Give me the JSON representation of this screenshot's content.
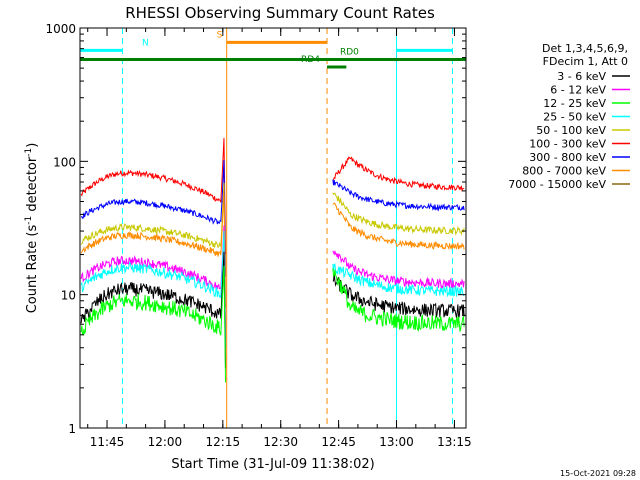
{
  "chart_data": {
    "type": "line",
    "title": "RHESSI Observing Summary Count Rates",
    "xlabel": "Start Time (31-Jul-09 11:38:02)",
    "ylabel_main": "Count Rate (s",
    "ylabel_sup1": "-1",
    "ylabel_mid": " detector",
    "ylabel_sup2": "-1",
    "ylabel_end": ")",
    "ylabel_full": "Count Rate (s-1 detector-1)",
    "yscale": "log",
    "xlim_min": [
      0,
      100
    ],
    "ylim": [
      1,
      1000
    ],
    "x_ticks": [
      {
        "m": 7,
        "label": "11:45"
      },
      {
        "m": 22,
        "label": "12:00"
      },
      {
        "m": 37,
        "label": "12:15"
      },
      {
        "m": 52,
        "label": "12:30"
      },
      {
        "m": 67,
        "label": "12:45"
      },
      {
        "m": 82,
        "label": "13:00"
      },
      {
        "m": 97,
        "label": "13:15"
      }
    ],
    "y_ticks": [
      {
        "v": 1,
        "label": "1"
      },
      {
        "v": 10,
        "label": "10"
      },
      {
        "v": 100,
        "label": "100"
      },
      {
        "v": 1000,
        "label": "1000"
      }
    ],
    "legend": {
      "placement": "right",
      "header": [
        "Det 1,3,4,5,6,9,",
        "FDecim 1, Att 0"
      ],
      "entries": [
        {
          "label": "3 - 6 keV",
          "color": "#000000"
        },
        {
          "label": "6 - 12 keV",
          "color": "#ff00ff"
        },
        {
          "label": "12 - 25 keV",
          "color": "#00ff00"
        },
        {
          "label": "25 - 50 keV",
          "color": "#00ffff"
        },
        {
          "label": "50 - 100 keV",
          "color": "#c8c800"
        },
        {
          "label": "100 - 300 keV",
          "color": "#ff0000"
        },
        {
          "label": "300 - 800 keV",
          "color": "#0000ff"
        },
        {
          "label": "800 - 7000 keV",
          "color": "#ff8c00"
        },
        {
          "label": "7000 - 15000 keV",
          "color": "#8b6914"
        }
      ]
    },
    "series": [
      {
        "color": "#ff0000",
        "pre_start": 55,
        "pre_peak": 82,
        "pre_end": 50,
        "post_start": 72,
        "post_jump": 105,
        "post_end": 63,
        "noise": 0.05
      },
      {
        "color": "#0000ff",
        "pre_start": 38,
        "pre_peak": 50,
        "pre_end": 34,
        "post_start": 70,
        "post_jump": 58,
        "post_end": 45,
        "noise": 0.05
      },
      {
        "color": "#c8c800",
        "pre_start": 25,
        "pre_peak": 32,
        "pre_end": 23,
        "post_start": 58,
        "post_jump": 40,
        "post_end": 30,
        "noise": 0.06
      },
      {
        "color": "#ff8c00",
        "pre_start": 21,
        "pre_peak": 28,
        "pre_end": 20,
        "post_start": 48,
        "post_jump": 32,
        "post_end": 23,
        "noise": 0.06
      },
      {
        "color": "#ff00ff",
        "pre_start": 13,
        "pre_peak": 18,
        "pre_end": 11,
        "post_start": 22,
        "post_jump": 16,
        "post_end": 12,
        "noise": 0.08
      },
      {
        "color": "#00ffff",
        "pre_start": 11,
        "pre_peak": 16,
        "pre_end": 10,
        "post_start": 16,
        "post_jump": 14,
        "post_end": 10.5,
        "noise": 0.09
      },
      {
        "color": "#000000",
        "pre_start": 6,
        "pre_peak": 11,
        "pre_end": 7,
        "post_start": 13,
        "post_jump": 10,
        "post_end": 7.5,
        "noise": 0.12
      },
      {
        "color": "#00ff00",
        "pre_start": 5,
        "pre_peak": 9,
        "pre_end": 5.5,
        "post_start": 15,
        "post_jump": 8,
        "post_end": 6,
        "noise": 0.14
      }
    ],
    "flag_bars": [
      {
        "label": "N",
        "color": "#00ffff",
        "start": 0,
        "end": 11,
        "level": 680
      },
      {
        "label": "",
        "color": "#00ffff",
        "start": 82,
        "end": 96.5,
        "level": 680
      },
      {
        "label": "S",
        "color": "#ff8c00",
        "start": 38,
        "end": 64,
        "level": 780
      },
      {
        "label": "RD0",
        "color": "#008000",
        "start": 0,
        "end": 100,
        "level": 580
      },
      {
        "label": "RD4",
        "color": "#008000",
        "start": 64,
        "end": 69,
        "level": 510
      }
    ],
    "vlines": [
      {
        "m": 0,
        "color": "#00ffff",
        "style": "solid"
      },
      {
        "m": 11,
        "color": "#00ffff",
        "style": "dashed"
      },
      {
        "m": 38,
        "color": "#ff8c00",
        "style": "solid"
      },
      {
        "m": 64,
        "color": "#ff8c00",
        "style": "dashed"
      },
      {
        "m": 82,
        "color": "#00ffff",
        "style": "solid"
      },
      {
        "m": 96.5,
        "color": "#00ffff",
        "style": "dashed"
      }
    ],
    "gap": {
      "start": 38,
      "end": 65.5
    }
  },
  "footer_timestamp": "15-Oct-2021 09:28"
}
